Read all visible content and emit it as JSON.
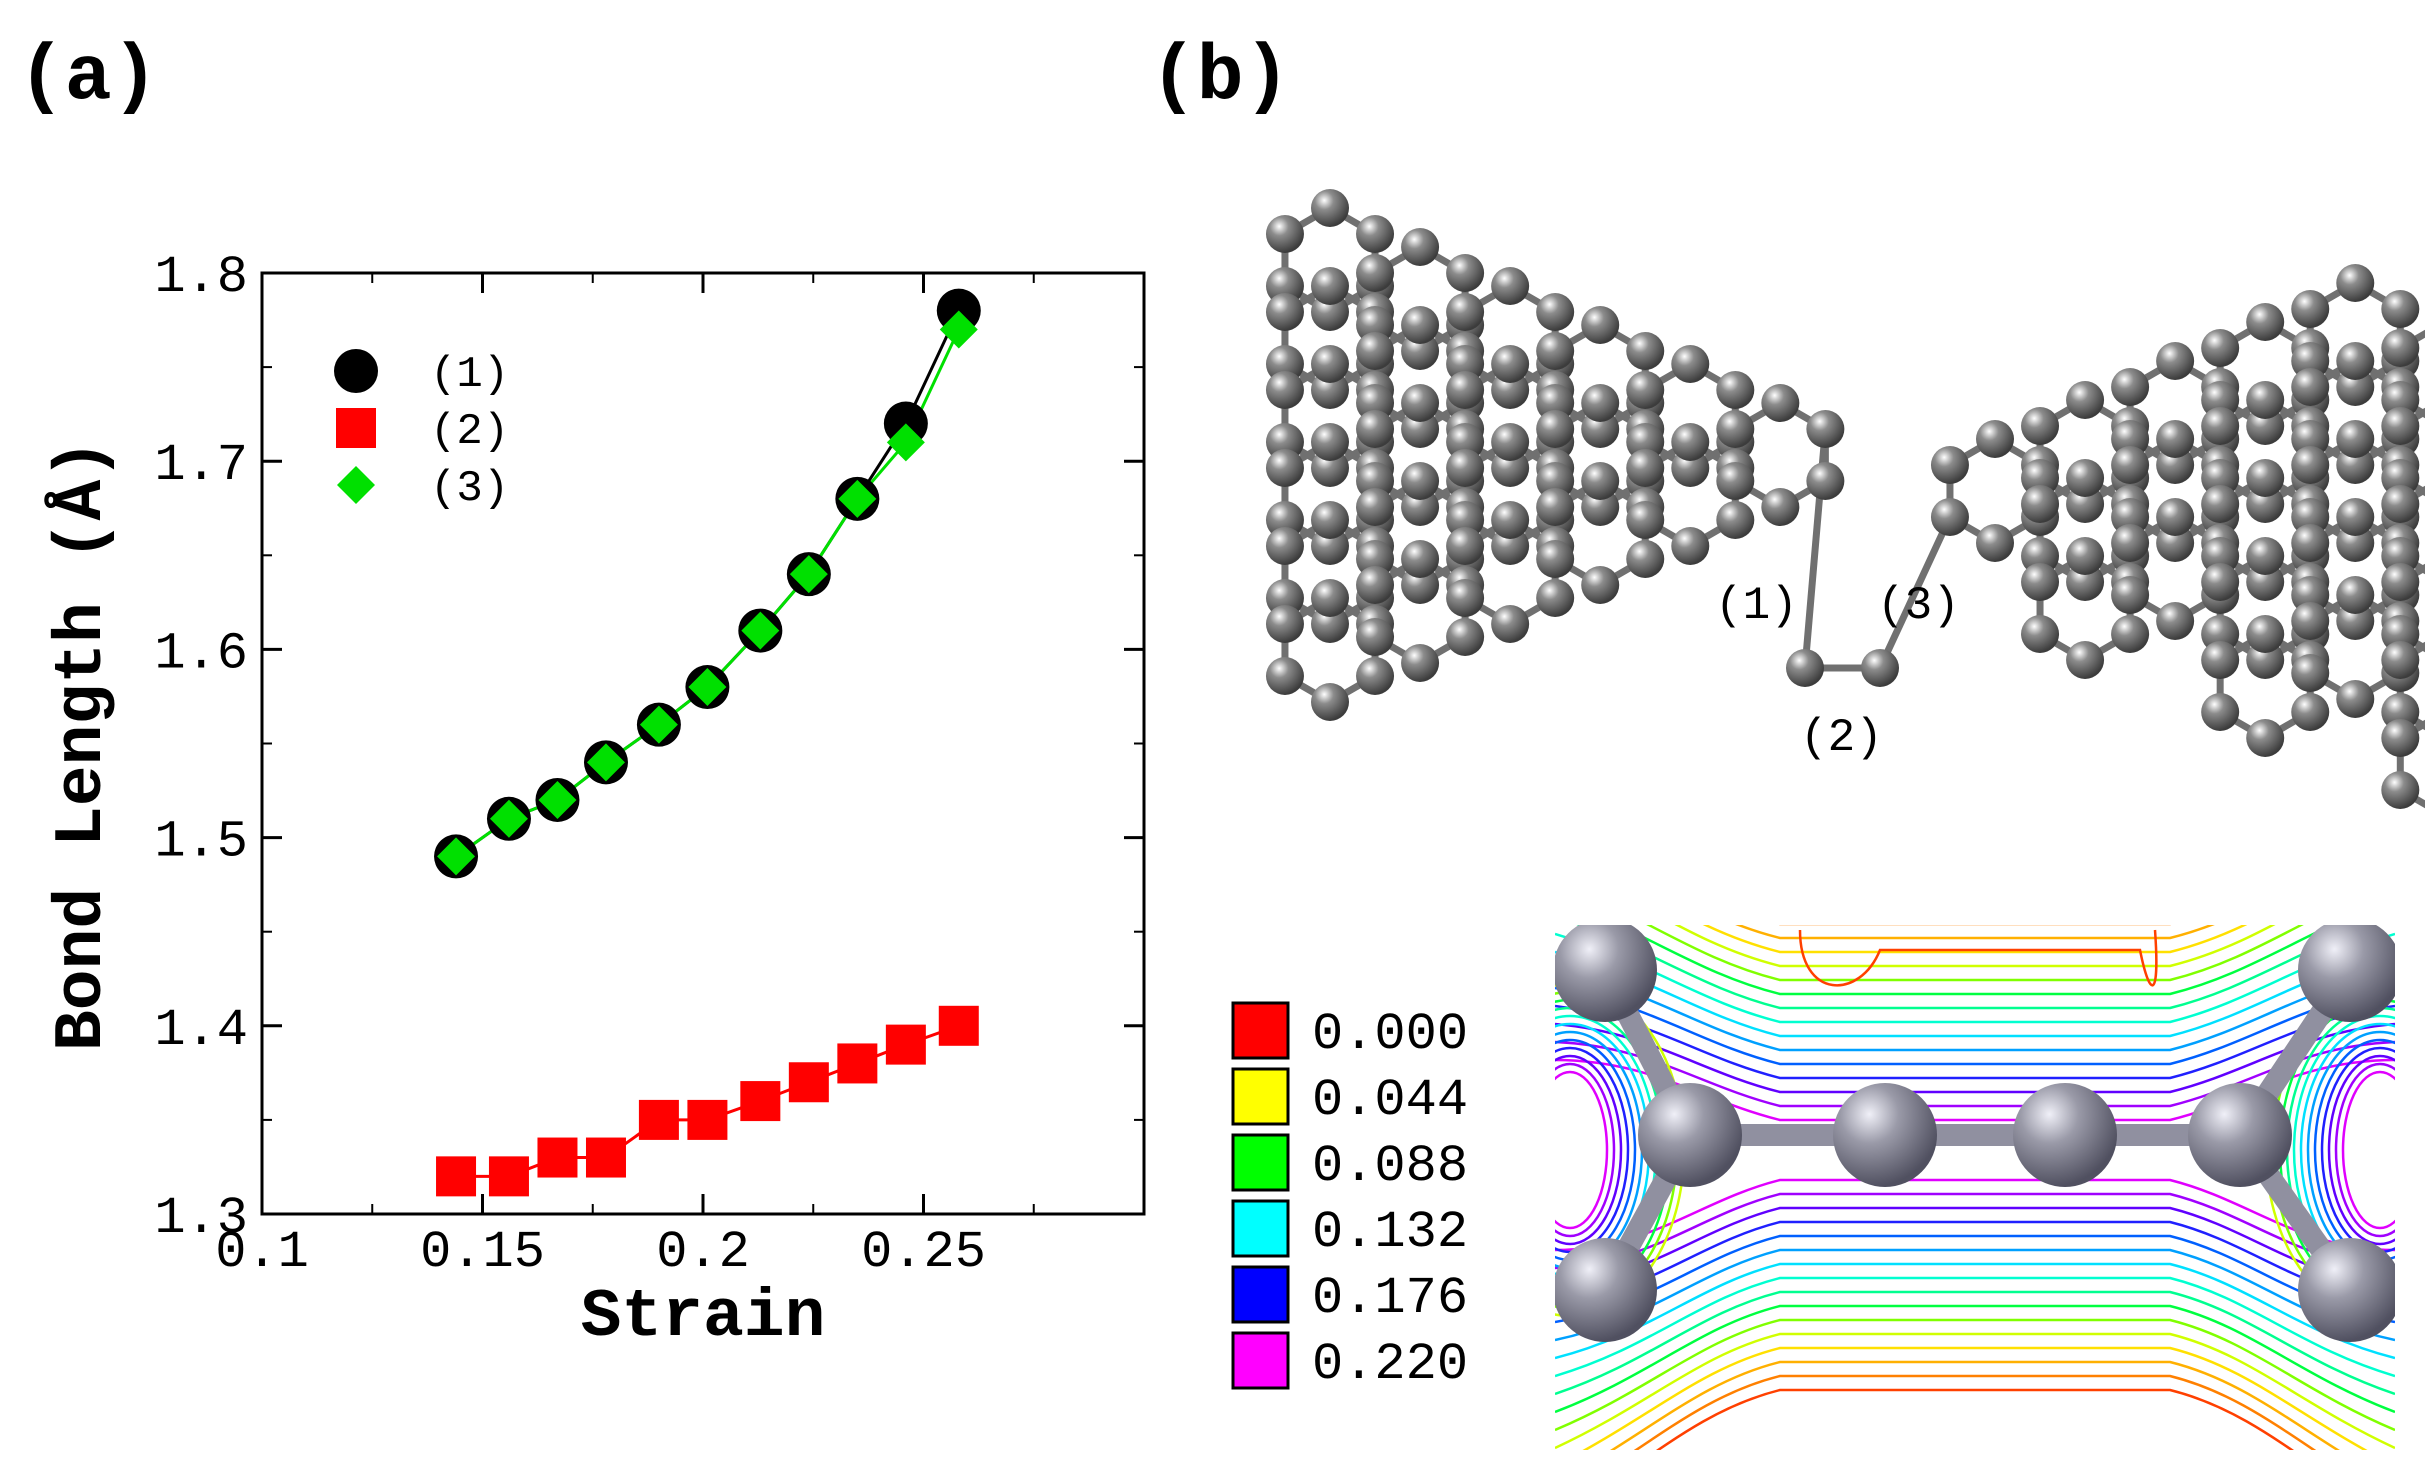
{
  "panels": {
    "a_label": "(a)",
    "b_label": "(b)"
  },
  "chart_data": {
    "type": "scatter",
    "title": "",
    "xlabel": "Strain",
    "ylabel": "Bond Length (Å)",
    "xlim": [
      0.1,
      0.3
    ],
    "ylim": [
      1.3,
      1.8
    ],
    "x_ticks": [
      0.1,
      0.15,
      0.2,
      0.25
    ],
    "x_tick_labels": [
      "0.1",
      "0.15",
      "0.2",
      "0.25"
    ],
    "y_ticks": [
      1.3,
      1.4,
      1.5,
      1.6,
      1.7,
      1.8
    ],
    "y_tick_labels": [
      "1.3",
      "1.4",
      "1.5",
      "1.6",
      "1.7",
      "1.8"
    ],
    "grid": false,
    "legend_position": "top-left",
    "x": [
      0.144,
      0.156,
      0.167,
      0.178,
      0.19,
      0.201,
      0.213,
      0.224,
      0.235,
      0.246,
      0.258
    ],
    "series": [
      {
        "name": "(1)",
        "marker": "circle",
        "color": "#000000",
        "values": [
          1.49,
          1.51,
          1.52,
          1.54,
          1.56,
          1.58,
          1.61,
          1.64,
          1.68,
          1.72,
          1.78
        ]
      },
      {
        "name": "(2)",
        "marker": "square",
        "color": "#ff0000",
        "values": [
          1.32,
          1.32,
          1.33,
          1.33,
          1.35,
          1.35,
          1.36,
          1.37,
          1.38,
          1.39,
          1.4
        ]
      },
      {
        "name": "(3)",
        "marker": "diamond",
        "color": "#00e000",
        "values": [
          1.49,
          1.51,
          1.52,
          1.54,
          1.56,
          1.58,
          1.61,
          1.64,
          1.68,
          1.71,
          1.77
        ]
      }
    ]
  },
  "structure": {
    "bond_labels": [
      "(1)",
      "(2)",
      "(3)"
    ],
    "atom_color": "#8c8c8c"
  },
  "colorbar": {
    "entries": [
      {
        "label": "0.000",
        "color": "#ff0000"
      },
      {
        "label": "0.044",
        "color": "#ffff00"
      },
      {
        "label": "0.088",
        "color": "#00ff00"
      },
      {
        "label": "0.132",
        "color": "#00ffff"
      },
      {
        "label": "0.176",
        "color": "#0000ff"
      },
      {
        "label": "0.220",
        "color": "#ff00ff"
      }
    ]
  }
}
